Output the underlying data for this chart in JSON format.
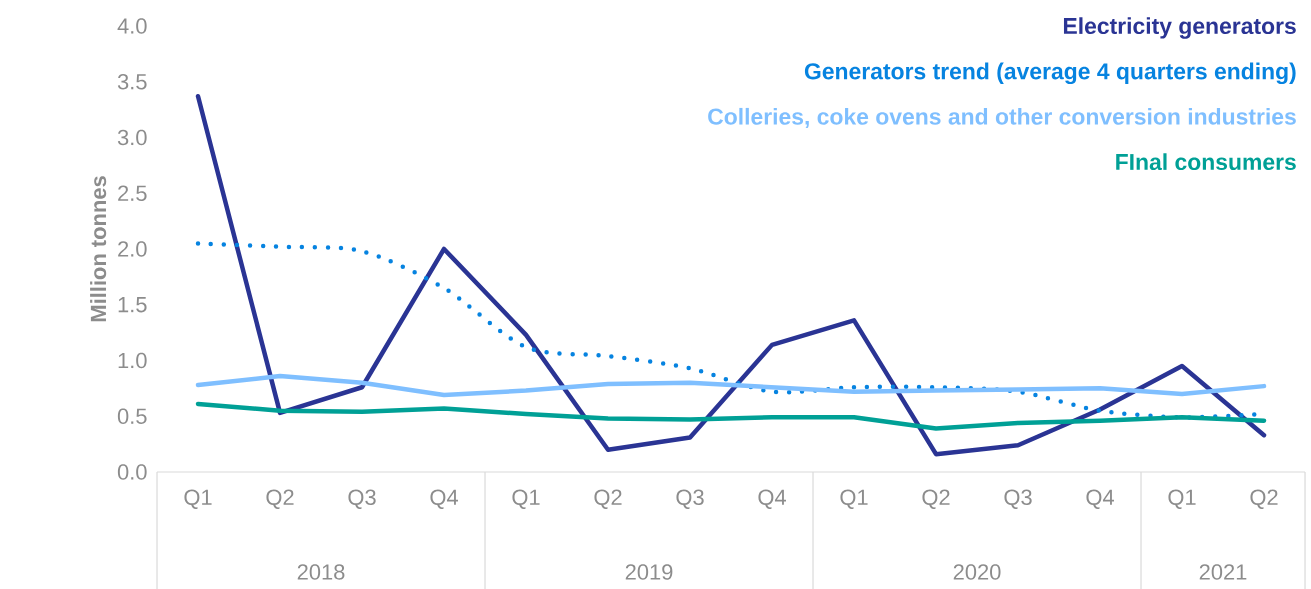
{
  "chart_data": {
    "type": "line",
    "ylabel": "Million tonnes",
    "categories": [
      "Q1",
      "Q2",
      "Q3",
      "Q4",
      "Q1",
      "Q2",
      "Q3",
      "Q4",
      "Q1",
      "Q2",
      "Q3",
      "Q4",
      "Q1",
      "Q2"
    ],
    "annotations": [
      "2018",
      "2019",
      "2020",
      "2021"
    ],
    "ylim": [
      0,
      4
    ],
    "yticks": [
      {
        "value": 0,
        "label": "0.0"
      },
      {
        "value": 0.5,
        "label": "0.5"
      },
      {
        "value": 1,
        "label": "1.0"
      },
      {
        "value": 1.5,
        "label": "1.5"
      },
      {
        "value": 2,
        "label": "2.0"
      },
      {
        "value": 2.5,
        "label": "2.5"
      },
      {
        "value": 3,
        "label": "3.0"
      },
      {
        "value": 3.5,
        "label": "3.5"
      },
      {
        "value": 4,
        "label": "4.0"
      }
    ],
    "grid": false,
    "legend": "top right",
    "marker": "none",
    "series": [
      {
        "name": "Electricity generators",
        "color": "#2a3494",
        "values": [
          3.37,
          0.53,
          0.76,
          2.0,
          1.23,
          0.2,
          0.31,
          1.14,
          1.36,
          0.16,
          0.24,
          0.56,
          0.95,
          0.33
        ]
      },
      {
        "name": "Generators trend (average 4 quarters ending)",
        "color": "#0683e0",
        "line_style": "dotted",
        "values": [
          2.05,
          2.02,
          1.98,
          1.65,
          1.12,
          1.04,
          0.93,
          0.72,
          0.76,
          0.76,
          0.72,
          0.55,
          0.49,
          0.52
        ]
      },
      {
        "name": "Colleries, coke ovens and other conversion industries",
        "color": "#7fbfff",
        "values": [
          0.78,
          0.86,
          0.8,
          0.69,
          0.73,
          0.79,
          0.8,
          0.76,
          0.72,
          0.73,
          0.74,
          0.75,
          0.7,
          0.77
        ]
      },
      {
        "name": "FInal consumers",
        "color": "#00a096",
        "values": [
          0.61,
          0.55,
          0.54,
          0.57,
          0.52,
          0.48,
          0.47,
          0.49,
          0.49,
          0.39,
          0.44,
          0.46,
          0.49,
          0.46
        ]
      }
    ]
  }
}
